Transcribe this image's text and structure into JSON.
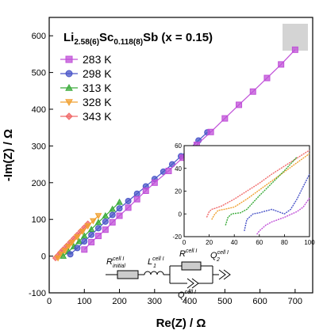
{
  "chart_data": [
    {
      "type": "scatter",
      "title": "Li2.58(6)Sc0.118(8)Sb (x = 0.15)",
      "title_parts": {
        "base": "Li",
        "sub1": "2.58(6)",
        "mid": "Sc",
        "sub2": "0.118(8)",
        "tail": "Sb (x = 0.15)"
      },
      "xlabel": "Re(Z) / Ω",
      "ylabel": "-Im(Z) / Ω",
      "xlim": [
        0,
        750
      ],
      "ylim": [
        -100,
        650
      ],
      "x_ticks": [
        0,
        100,
        200,
        300,
        400,
        500,
        600,
        700
      ],
      "y_ticks": [
        -100,
        0,
        100,
        200,
        300,
        400,
        500,
        600
      ],
      "legend_position": "top-left",
      "grid": false,
      "series": [
        {
          "name": "283 K",
          "color": "#c050d8",
          "marker": "square",
          "x": [
            100,
            120,
            140,
            160,
            180,
            200,
            225,
            250,
            275,
            300,
            340,
            380,
            420,
            460,
            500,
            540,
            580,
            620,
            660,
            700
          ],
          "y": [
            18,
            38,
            55,
            72,
            92,
            110,
            132,
            155,
            178,
            200,
            232,
            268,
            303,
            338,
            375,
            412,
            448,
            485,
            522,
            562
          ]
        },
        {
          "name": "298 K",
          "color": "#4a55c8",
          "marker": "circle",
          "x": [
            60,
            80,
            100,
            120,
            140,
            160,
            180,
            200,
            225,
            250,
            275,
            300,
            325,
            350,
            375,
            400,
            425,
            450
          ],
          "y": [
            5,
            22,
            40,
            58,
            76,
            94,
            112,
            130,
            150,
            170,
            190,
            210,
            230,
            250,
            272,
            293,
            315,
            337
          ]
        },
        {
          "name": "313 K",
          "color": "#3aab3a",
          "marker": "triangle-up",
          "x": [
            40,
            55,
            70,
            85,
            100,
            120,
            140,
            160,
            180,
            200
          ],
          "y": [
            0,
            12,
            26,
            40,
            55,
            73,
            92,
            110,
            128,
            147
          ]
        },
        {
          "name": "328 K",
          "color": "#f0a030",
          "marker": "triangle-down",
          "x": [
            25,
            35,
            45,
            55,
            65,
            80,
            95,
            110,
            125,
            140
          ],
          "y": [
            -5,
            5,
            15,
            26,
            37,
            52,
            67,
            82,
            96,
            110
          ]
        },
        {
          "name": "343 K",
          "color": "#f06a6a",
          "marker": "diamond",
          "x": [
            18,
            25,
            32,
            40,
            50,
            60,
            70,
            80,
            90,
            100,
            110
          ],
          "y": [
            -5,
            2,
            10,
            18,
            28,
            38,
            48,
            58,
            68,
            78,
            88
          ]
        }
      ]
    },
    {
      "type": "line",
      "title": "",
      "xlim": [
        0,
        100
      ],
      "ylim": [
        -20,
        60
      ],
      "x_ticks": [
        0,
        20,
        40,
        60,
        80,
        100
      ],
      "y_ticks": [
        -20,
        0,
        20,
        40,
        60
      ],
      "series": [
        {
          "color": "#f06a6a",
          "x": [
            18,
            20,
            22,
            25,
            30,
            40,
            50,
            60,
            70,
            80,
            90,
            100
          ],
          "y": [
            -3,
            2,
            4,
            5,
            7,
            13,
            20,
            27,
            35,
            42,
            49,
            56
          ]
        },
        {
          "color": "#f0a030",
          "x": [
            22,
            24,
            27,
            32,
            40,
            50,
            60,
            70,
            80,
            90,
            100
          ],
          "y": [
            -5,
            -1,
            3,
            4,
            6,
            13,
            21,
            29,
            37,
            45,
            53
          ]
        },
        {
          "color": "#3aab3a",
          "x": [
            33,
            35,
            38,
            45,
            50,
            55,
            60,
            70,
            80,
            90
          ],
          "y": [
            -10,
            -3,
            0,
            1,
            4,
            10,
            16,
            27,
            38,
            50
          ]
        },
        {
          "color": "#4a55c8",
          "x": [
            48,
            50,
            55,
            60,
            70,
            75,
            80,
            85,
            90,
            95,
            100
          ],
          "y": [
            -15,
            -5,
            0,
            1,
            4,
            2,
            0,
            4,
            13,
            24,
            35
          ]
        },
        {
          "color": "#c050d8",
          "x": [
            58,
            60,
            65,
            70,
            80,
            90,
            95,
            100
          ],
          "y": [
            -18,
            -15,
            -10,
            -7,
            -3,
            2,
            6,
            14
          ]
        }
      ]
    }
  ],
  "circuit": {
    "r_initial": {
      "main": "R",
      "sup": "cell I",
      "sub": "initial"
    },
    "l1": {
      "main": "L",
      "sup": "cell I",
      "sub": "1"
    },
    "r_cell": {
      "main": "R",
      "sup": "cell I"
    },
    "q2": {
      "main": "Q",
      "sup": "cell I",
      "sub": "2"
    },
    "q1": {
      "main": "Q",
      "sup": "cell I",
      "sub": "1"
    }
  }
}
